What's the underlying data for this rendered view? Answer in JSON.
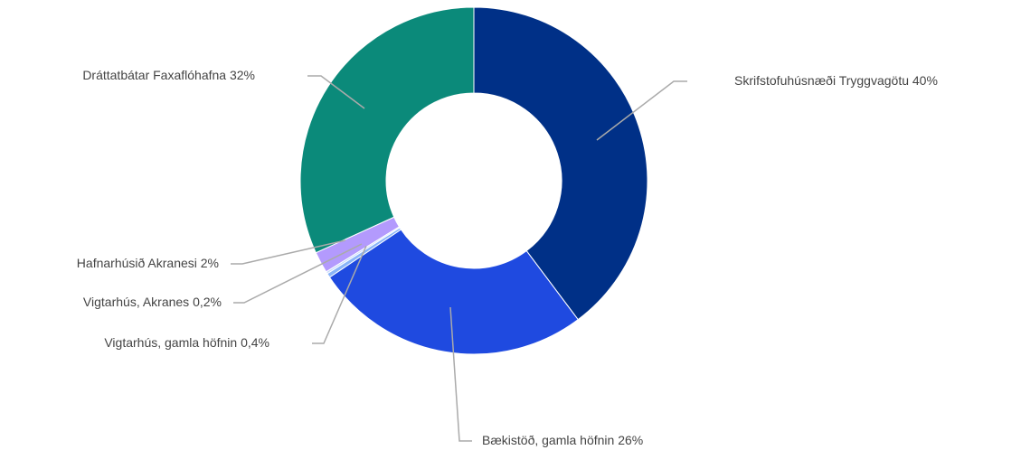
{
  "chart_data": {
    "type": "donut",
    "categories": [
      "Skrifstofuhúsnæði Tryggvagötu",
      "Bækistöð, gamla höfnin",
      "Vigtarhús, gamla höfnin",
      "Vigtarhús, Akranes",
      "Hafnarhúsið Akranesi",
      "Dráttatbátar Faxaflóhafna"
    ],
    "values": [
      40,
      26,
      0.4,
      0.2,
      2,
      32
    ],
    "value_labels": [
      "40%",
      "26%",
      "0,4%",
      "0,2%",
      "2%",
      "32%"
    ],
    "colors": [
      "#003087",
      "#1f4ae0",
      "#8ab4f8",
      "#c6dafc",
      "#b39afd",
      "#0b8a7a"
    ]
  }
}
